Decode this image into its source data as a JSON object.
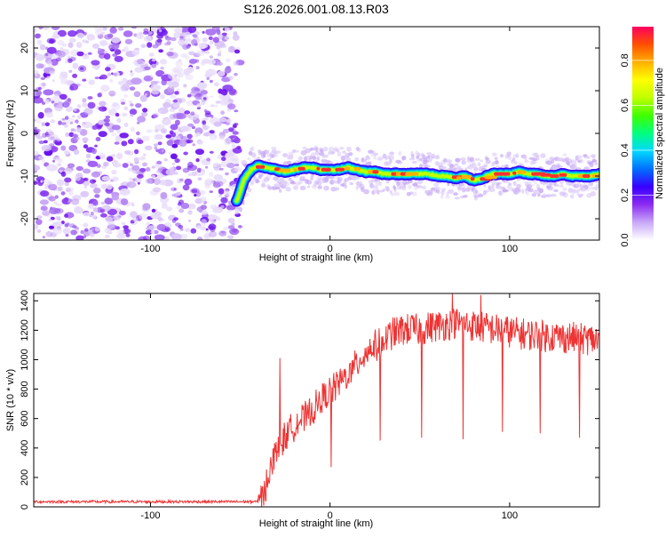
{
  "title": "S126.2026.001.08.13.R03",
  "chart_data": [
    {
      "type": "heatmap",
      "name": "spectrogram",
      "xlabel": "Height of straight line (km)",
      "ylabel": "Frequency (Hz)",
      "xlim": [
        -165,
        150
      ],
      "ylim": [
        -25,
        25
      ],
      "xticks": [
        -100,
        0,
        100
      ],
      "yticks": [
        -20,
        -10,
        0,
        10,
        20
      ],
      "noise_region_x": [
        -165,
        -50
      ],
      "signal_region_x": [
        -52,
        150
      ],
      "signal_trace": {
        "x": [
          -52,
          -48,
          -44,
          -40,
          -35,
          -30,
          -25,
          -20,
          -15,
          -10,
          -5,
          0,
          5,
          10,
          15,
          20,
          25,
          30,
          35,
          40,
          45,
          50,
          55,
          60,
          65,
          70,
          75,
          80,
          85,
          90,
          95,
          100,
          105,
          110,
          115,
          120,
          125,
          130,
          135,
          140,
          145,
          150
        ],
        "y": [
          -16,
          -11,
          -8.5,
          -7.5,
          -8,
          -8.5,
          -9,
          -8.5,
          -8,
          -8,
          -8.5,
          -8.5,
          -8.5,
          -8,
          -8.5,
          -9,
          -9,
          -9.5,
          -9.5,
          -9.5,
          -9.5,
          -9.5,
          -9.5,
          -10,
          -10,
          -10.5,
          -10,
          -11,
          -10.5,
          -9.5,
          -9.5,
          -9.5,
          -9,
          -9.5,
          -9.5,
          -10,
          -10,
          -9.5,
          -10,
          -10,
          -10,
          -9.5
        ]
      },
      "colorbar": {
        "label": "Normalized spectral amplitude",
        "range": [
          0,
          0.95
        ],
        "ticks": [
          "0.0",
          "0.2",
          "0.4",
          "0.6",
          "0.8"
        ],
        "tick_values": [
          0.0,
          0.2,
          0.4,
          0.6,
          0.8
        ],
        "colors": [
          "#ffffff",
          "#c8a8f8",
          "#8c2cf0",
          "#3800ff",
          "#0070ff",
          "#00d8ff",
          "#00ff80",
          "#40ff00",
          "#c0ff00",
          "#ffff00",
          "#ffb000",
          "#ff5000",
          "#ff0060"
        ]
      }
    },
    {
      "type": "line",
      "name": "snr",
      "xlabel": "Height of straight line (km)",
      "ylabel": "SNR (10 * v/v)",
      "xlim": [
        -165,
        150
      ],
      "ylim": [
        0,
        1450
      ],
      "xticks": [
        -100,
        0,
        100
      ],
      "yticks": [
        0,
        200,
        400,
        600,
        800,
        1000,
        1200,
        1400
      ],
      "color": "#ee3333",
      "series": [
        {
          "name": "SNR",
          "x": [
            -165,
            -40,
            -37,
            -35,
            -32,
            -30,
            -27,
            -25,
            -22,
            -20,
            -17,
            -15,
            -12,
            -10,
            -7,
            -5,
            -2,
            0,
            3,
            5,
            8,
            10,
            13,
            15,
            18,
            20,
            23,
            25,
            28,
            30,
            35,
            40,
            45,
            50,
            55,
            60,
            65,
            70,
            75,
            80,
            85,
            90,
            95,
            100,
            105,
            110,
            115,
            120,
            125,
            130,
            135,
            140,
            145,
            150
          ],
          "y": [
            35,
            35,
            80,
            200,
            300,
            380,
            420,
            480,
            520,
            560,
            590,
            600,
            620,
            650,
            690,
            730,
            760,
            790,
            820,
            850,
            870,
            900,
            930,
            980,
            1020,
            1050,
            1080,
            1090,
            1110,
            1130,
            1180,
            1200,
            1210,
            1200,
            1220,
            1230,
            1240,
            1250,
            1240,
            1230,
            1220,
            1210,
            1200,
            1190,
            1180,
            1170,
            1170,
            1160,
            1160,
            1150,
            1150,
            1140,
            1140,
            1130
          ]
        }
      ],
      "dips": [
        {
          "x": 0.5,
          "y": 270
        },
        {
          "x": 28,
          "y": 450
        },
        {
          "x": 51,
          "y": 470
        },
        {
          "x": 74,
          "y": 460
        },
        {
          "x": 96,
          "y": 510
        },
        {
          "x": 117,
          "y": 500
        },
        {
          "x": 139,
          "y": 470
        }
      ],
      "spikes": [
        {
          "x": -28,
          "y": 1010
        },
        {
          "x": 68,
          "y": 1450
        },
        {
          "x": 84,
          "y": 1440
        }
      ]
    }
  ]
}
